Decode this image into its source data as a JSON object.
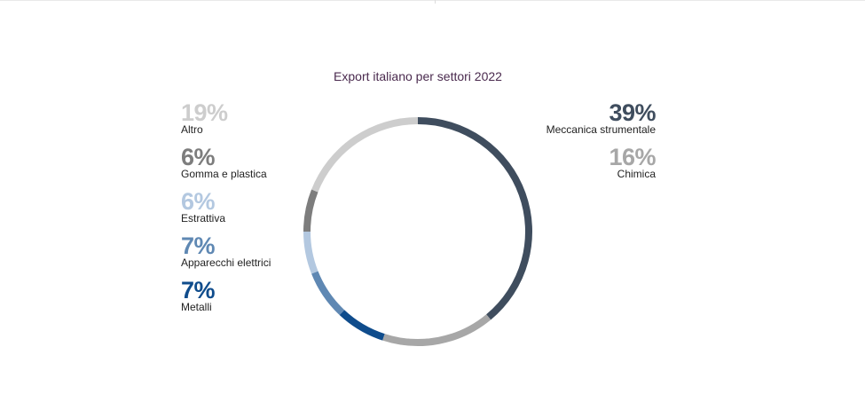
{
  "chart_data": {
    "type": "pie",
    "style": "donut",
    "title": "Export italiano per settori 2022",
    "slices": [
      {
        "label": "Meccanica strumentale",
        "value": 39,
        "display": "39%",
        "color": "#3f4d5e",
        "legend_side": "right"
      },
      {
        "label": "Chimica",
        "value": 16,
        "display": "16%",
        "color": "#a7a7a7",
        "legend_side": "right"
      },
      {
        "label": "Metalli",
        "value": 7,
        "display": "7%",
        "color": "#0f4c8c",
        "legend_side": "left"
      },
      {
        "label": "Apparecchi elettrici",
        "value": 7,
        "display": "7%",
        "color": "#5f88b3",
        "legend_side": "left"
      },
      {
        "label": "Estrattiva",
        "value": 6,
        "display": "6%",
        "color": "#b3c8e0",
        "legend_side": "left"
      },
      {
        "label": "Gomma e plastica",
        "value": 6,
        "display": "6%",
        "color": "#7d7d7d",
        "legend_side": "left"
      },
      {
        "label": "Altro",
        "value": 19,
        "display": "19%",
        "color": "#cdcdcd",
        "legend_side": "left"
      }
    ]
  }
}
